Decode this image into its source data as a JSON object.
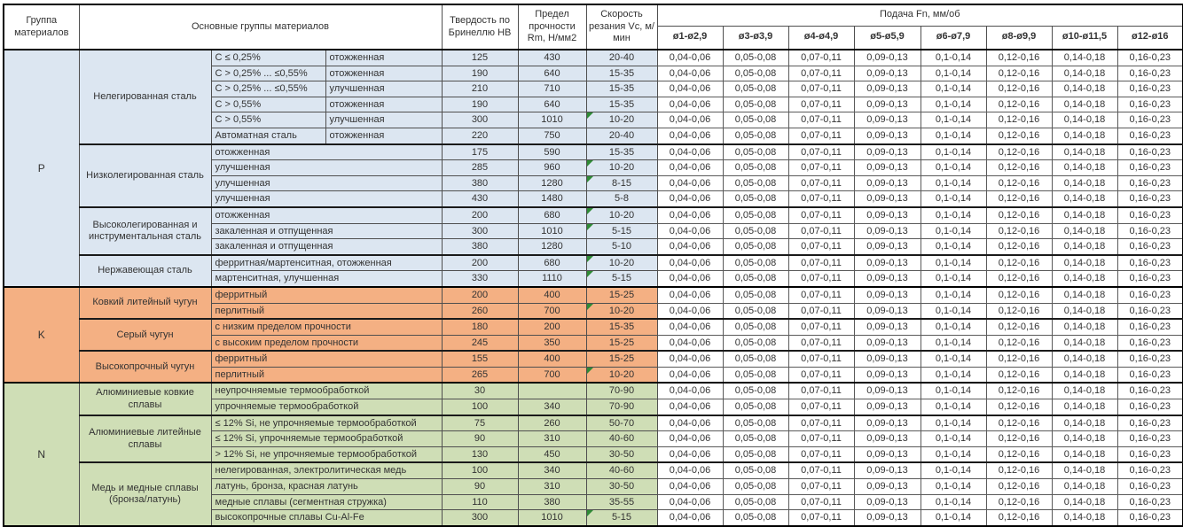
{
  "header": {
    "col_group": "Группа материалов",
    "col_main": "Основные группы материалов",
    "col_hardness": "Твердость по Бринеллю HB",
    "col_strength": "Предел прочности Rm, Н/мм2",
    "col_speed": "Скорость резания Vc, м/мин",
    "feed_title": "Подача Fn, мм/об",
    "feed_cols": [
      "ø1-ø2,9",
      "ø3-ø3,9",
      "ø4-ø4,9",
      "ø5-ø5,9",
      "ø6-ø7,9",
      "ø8-ø9,9",
      "ø10-ø11,5",
      "ø12-ø16"
    ]
  },
  "feed_values": [
    "0,04-0,06",
    "0,05-0,08",
    "0,07-0,11",
    "0,09-0,13",
    "0,1-0,14",
    "0,12-0,16",
    "0,14-0,18",
    "0,16-0,23"
  ],
  "colors": {
    "group_p": "#dce6f1",
    "group_k": "#f4b083",
    "group_n": "#cfdeb6",
    "note_indicator": "#2f8b36"
  },
  "groups": [
    {
      "letter": "P",
      "color": "#dce6f1",
      "subgroups": [
        {
          "name": "Нелегированная сталь",
          "rows": [
            {
              "c1": "C ≤ 0,25%",
              "c2": "отожженная",
              "hb": "125",
              "rm": "430",
              "vc": "20-40",
              "note": false
            },
            {
              "c1": "C > 0,25% ... ≤0,55%",
              "c2": "отожженная",
              "hb": "190",
              "rm": "640",
              "vc": "15-35",
              "note": false
            },
            {
              "c1": "C > 0,25% ... ≤0,55%",
              "c2": "улучшенная",
              "hb": "210",
              "rm": "710",
              "vc": "15-35",
              "note": false
            },
            {
              "c1": "C > 0,55%",
              "c2": "отожженная",
              "hb": "190",
              "rm": "640",
              "vc": "15-35",
              "note": false
            },
            {
              "c1": "C > 0,55%",
              "c2": "улучшенная",
              "hb": "300",
              "rm": "1010",
              "vc": "10-20",
              "note": true
            },
            {
              "c1": "Автоматная сталь",
              "c2": "отожженная",
              "hb": "220",
              "rm": "750",
              "vc": "20-40",
              "note": false
            }
          ]
        },
        {
          "name": "Низколегированная сталь",
          "rows": [
            {
              "desc": "отожженная",
              "hb": "175",
              "rm": "590",
              "vc": "15-35",
              "note": false
            },
            {
              "desc": "улучшенная",
              "hb": "285",
              "rm": "960",
              "vc": "10-20",
              "note": true
            },
            {
              "desc": "улучшенная",
              "hb": "380",
              "rm": "1280",
              "vc": "8-15",
              "note": true
            },
            {
              "desc": "улучшенная",
              "hb": "430",
              "rm": "1480",
              "vc": "5-8",
              "note": false
            }
          ]
        },
        {
          "name": "Высоколегированная и инструментальная сталь",
          "rows": [
            {
              "desc": "отожженная",
              "hb": "200",
              "rm": "680",
              "vc": "10-20",
              "note": true
            },
            {
              "desc": "закаленная и отпущенная",
              "hb": "300",
              "rm": "1010",
              "vc": "5-15",
              "note": true
            },
            {
              "desc": "закаленная и отпущенная",
              "hb": "380",
              "rm": "1280",
              "vc": "5-10",
              "note": false
            }
          ]
        },
        {
          "name": "Нержавеющая сталь",
          "rows": [
            {
              "desc": "ферритная/мартенситная, отожженная",
              "hb": "200",
              "rm": "680",
              "vc": "10-20",
              "note": true
            },
            {
              "desc": "мартенситная, улучшенная",
              "hb": "330",
              "rm": "1110",
              "vc": "5-15",
              "note": true
            }
          ]
        }
      ]
    },
    {
      "letter": "K",
      "color": "#f4b083",
      "subgroups": [
        {
          "name": "Ковкий литейный чугун",
          "rows": [
            {
              "desc": "ферритный",
              "hb": "200",
              "rm": "400",
              "vc": "15-25",
              "note": false
            },
            {
              "desc": "перлитный",
              "hb": "260",
              "rm": "700",
              "vc": "10-20",
              "note": true
            }
          ]
        },
        {
          "name": "Серый чугун",
          "rows": [
            {
              "desc": "с низким пределом прочности",
              "hb": "180",
              "rm": "200",
              "vc": "15-35",
              "note": false
            },
            {
              "desc": "с высоким пределом прочности",
              "hb": "245",
              "rm": "350",
              "vc": "15-25",
              "note": false
            }
          ]
        },
        {
          "name": "Высокопрочный чугун",
          "rows": [
            {
              "desc": "ферритный",
              "hb": "155",
              "rm": "400",
              "vc": "15-25",
              "note": false
            },
            {
              "desc": "перлитный",
              "hb": "265",
              "rm": "700",
              "vc": "10-20",
              "note": true
            }
          ]
        }
      ]
    },
    {
      "letter": "N",
      "color": "#cfdeb6",
      "subgroups": [
        {
          "name": "Алюминиевые ковкие сплавы",
          "rows": [
            {
              "desc": "неупрочняемые термообработкой",
              "hb": "30",
              "rm": "",
              "vc": "70-90",
              "note": false
            },
            {
              "desc": "упрочняемые термообработкой",
              "hb": "100",
              "rm": "340",
              "vc": "70-90",
              "note": false
            }
          ]
        },
        {
          "name": "Алюминиевые литейные сплавы",
          "rows": [
            {
              "desc": "≤ 12% Si, не упрочняемые термообработкой",
              "hb": "75",
              "rm": "260",
              "vc": "50-70",
              "note": false
            },
            {
              "desc": "≤ 12% Si, упрочняемые термообработкой",
              "hb": "90",
              "rm": "310",
              "vc": "40-60",
              "note": false
            },
            {
              "desc": "> 12% Si, не упрочняемые термообработкой",
              "hb": "130",
              "rm": "450",
              "vc": "30-50",
              "note": false
            }
          ]
        },
        {
          "name": "Медь и медные сплавы (бронза/латунь)",
          "rows": [
            {
              "desc": "нелегированная, электролитическая медь",
              "hb": "100",
              "rm": "340",
              "vc": "40-60",
              "note": false
            },
            {
              "desc": "латунь, бронза, красная латунь",
              "hb": "90",
              "rm": "310",
              "vc": "30-50",
              "note": false
            },
            {
              "desc": "медные сплавы (сегментная стружка)",
              "hb": "110",
              "rm": "380",
              "vc": "35-55",
              "note": false
            },
            {
              "desc": "высокопрочные сплавы Cu-Al-Fe",
              "hb": "300",
              "rm": "1010",
              "vc": "5-15",
              "note": true
            }
          ]
        }
      ]
    }
  ]
}
